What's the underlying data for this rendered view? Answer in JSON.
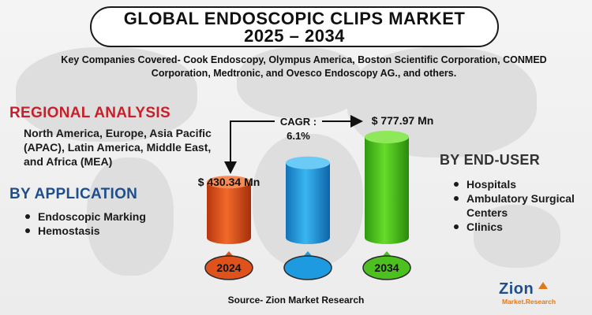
{
  "title_line1": "GLOBAL ENDOSCOPIC CLIPS MARKET",
  "title_line2": "2025 – 2034",
  "companies_text": "Key Companies Covered- Cook Endoscopy, Olympus America, Boston Scientific Corporation, CONMED Corporation, Medtronic, and Ovesco Endoscopy AG., and others.",
  "regional": {
    "heading": "REGIONAL ANALYSIS",
    "text": "North America, Europe, Asia Pacific (APAC), Latin America, Middle East, and Africa (MEA)"
  },
  "by_application": {
    "heading": "BY APPLICATION",
    "items": [
      "Endoscopic Marking",
      "Hemostasis"
    ]
  },
  "by_end_user": {
    "heading": "BY END-USER",
    "items": [
      "Hospitals",
      "Ambulatory Surgical Centers",
      "Clinics"
    ]
  },
  "source": "Source- Zion Market Research",
  "logo": {
    "name": "Zion",
    "subtitle": "Market.Research"
  },
  "colors": {
    "regional_heading": "#c8202a",
    "application_heading": "#1f4e8c",
    "bar_2024": "#e0521c",
    "bar_middle": "#1e9be0",
    "bar_2034": "#4cc01e"
  },
  "chart_data": {
    "type": "bar",
    "categories": [
      "2024",
      "",
      "2034"
    ],
    "values": [
      430.34,
      null,
      777.97
    ],
    "value_labels": [
      "$ 430.34 Mn",
      "",
      "$ 777.97 Mn"
    ],
    "cagr_label_line1": "CAGR :",
    "cagr_label_line2": "6.1%",
    "unit": "Mn"
  }
}
